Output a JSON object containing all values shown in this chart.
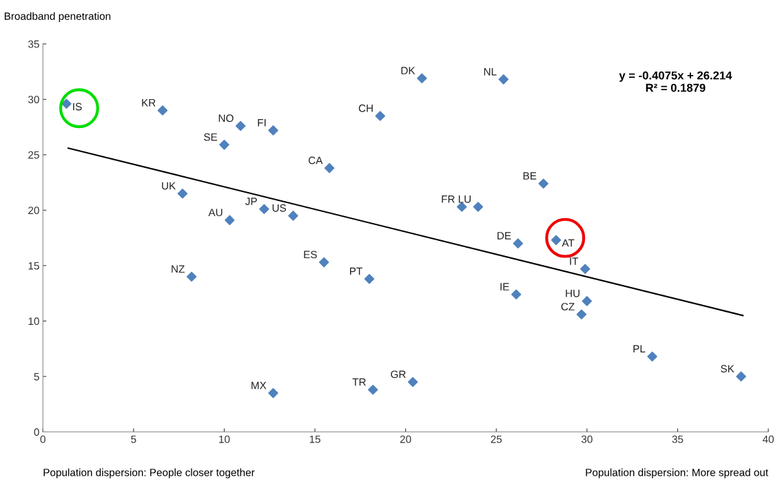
{
  "chart_data": {
    "type": "scatter",
    "ylabel": "Broadband penetration",
    "xlim": [
      0,
      40
    ],
    "xticks": [
      0,
      5,
      10,
      15,
      20,
      25,
      30,
      35,
      40
    ],
    "ylim": [
      0,
      35
    ],
    "yticks": [
      0,
      5,
      10,
      15,
      20,
      25,
      30,
      35
    ],
    "grid": false,
    "legend": false,
    "marker": "diamond",
    "series": [
      {
        "color": "#4f81bd",
        "x": [
          1.3,
          6.6,
          10.9,
          12.7,
          10.0,
          18.6,
          20.9,
          25.4,
          15.8,
          7.7,
          12.2,
          10.3,
          13.8,
          15.5,
          8.2,
          18.0,
          23.1,
          24.0,
          27.6,
          26.2,
          28.3,
          29.9,
          26.1,
          30.0,
          29.7,
          33.6,
          38.5,
          12.7,
          18.2,
          20.4
        ],
        "values": [
          29.6,
          29.0,
          27.6,
          27.2,
          25.9,
          28.5,
          31.9,
          31.8,
          23.8,
          21.5,
          20.1,
          19.1,
          19.5,
          15.3,
          14.0,
          13.8,
          20.3,
          20.3,
          22.4,
          17.0,
          17.3,
          14.7,
          12.4,
          11.8,
          10.6,
          6.8,
          5.0,
          3.5,
          3.8,
          4.5
        ]
      },
      {
        "type": "line",
        "color": "#000000",
        "marker": "none",
        "line_style": "solid",
        "x": [
          1.4,
          38.6
        ],
        "values": [
          25.6,
          10.5
        ]
      },
      {
        "type": "scatter",
        "marker": "circle",
        "color": "#00dd00",
        "x": [
          2.0
        ],
        "values": [
          29.2
        ]
      },
      {
        "type": "scatter",
        "marker": "circle",
        "color": "#ee0000",
        "x": [
          28.8
        ],
        "values": [
          17.5
        ]
      }
    ],
    "annotations": [
      "y = -0.4075x + 26.214\nR² = 0.1879",
      "Population dispersion: People closer together",
      "Population dispersion: More spread out",
      {
        "text": "IS",
        "x": 1.3,
        "y": 29.6
      },
      {
        "text": "KR",
        "x": 6.6,
        "y": 29.0
      },
      {
        "text": "NO",
        "x": 10.9,
        "y": 27.6
      },
      {
        "text": "FI",
        "x": 12.7,
        "y": 27.2
      },
      {
        "text": "SE",
        "x": 10.0,
        "y": 25.9
      },
      {
        "text": "CH",
        "x": 18.6,
        "y": 28.5
      },
      {
        "text": "DK",
        "x": 20.9,
        "y": 31.9
      },
      {
        "text": "NL",
        "x": 25.4,
        "y": 31.8
      },
      {
        "text": "CA",
        "x": 15.8,
        "y": 23.8
      },
      {
        "text": "UK",
        "x": 7.7,
        "y": 21.5
      },
      {
        "text": "JP",
        "x": 12.2,
        "y": 20.1
      },
      {
        "text": "AU",
        "x": 10.3,
        "y": 19.1
      },
      {
        "text": "US",
        "x": 13.8,
        "y": 19.5
      },
      {
        "text": "ES",
        "x": 15.5,
        "y": 15.3
      },
      {
        "text": "NZ",
        "x": 8.2,
        "y": 14.0
      },
      {
        "text": "PT",
        "x": 18.0,
        "y": 13.8
      },
      {
        "text": "FR",
        "x": 23.1,
        "y": 20.3
      },
      {
        "text": "LU",
        "x": 24.0,
        "y": 20.3
      },
      {
        "text": "BE",
        "x": 27.6,
        "y": 22.4
      },
      {
        "text": "DE",
        "x": 26.2,
        "y": 17.0
      },
      {
        "text": "AT",
        "x": 28.3,
        "y": 17.3
      },
      {
        "text": "IT",
        "x": 29.9,
        "y": 14.7
      },
      {
        "text": "IE",
        "x": 26.1,
        "y": 12.4
      },
      {
        "text": "HU",
        "x": 30.0,
        "y": 11.8
      },
      {
        "text": "CZ",
        "x": 29.7,
        "y": 10.6
      },
      {
        "text": "PL",
        "x": 33.6,
        "y": 6.8
      },
      {
        "text": "SK",
        "x": 38.5,
        "y": 5.0
      },
      {
        "text": "MX",
        "x": 12.7,
        "y": 3.5
      },
      {
        "text": "TR",
        "x": 18.2,
        "y": 3.8
      },
      {
        "text": "GR",
        "x": 20.4,
        "y": 4.5
      }
    ]
  }
}
